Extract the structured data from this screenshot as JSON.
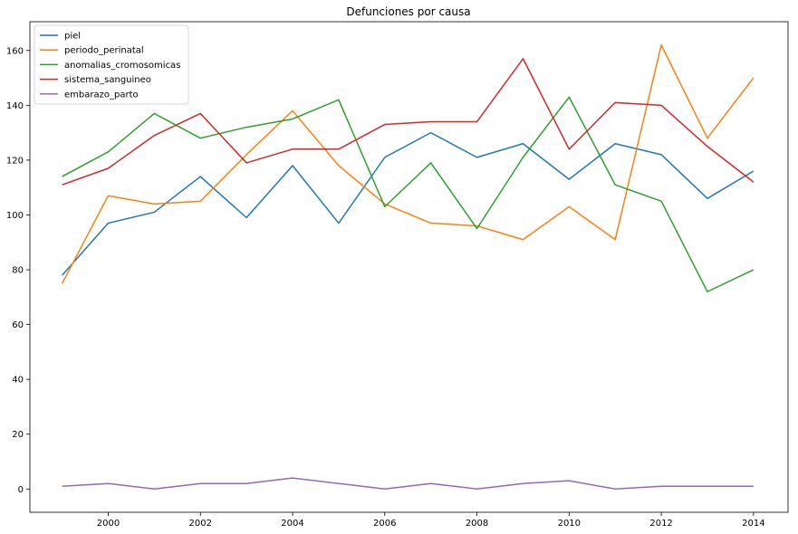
{
  "chart_data": {
    "type": "line",
    "title": "Defunciones por causa",
    "xlabel": "",
    "ylabel": "",
    "x": [
      1999,
      2000,
      2001,
      2002,
      2003,
      2004,
      2005,
      2006,
      2007,
      2008,
      2009,
      2010,
      2011,
      2012,
      2013,
      2014
    ],
    "xlim": [
      1998.3,
      2014.75
    ],
    "ylim": [
      -8.5,
      170.5
    ],
    "xticks": [
      2000,
      2002,
      2004,
      2006,
      2008,
      2010,
      2012,
      2014
    ],
    "yticks": [
      0,
      20,
      40,
      60,
      80,
      100,
      120,
      140,
      160
    ],
    "grid": false,
    "legend_position": "top-left",
    "series": [
      {
        "name": "piel",
        "color": "#1f77b4",
        "values": [
          78,
          97,
          101,
          114,
          99,
          118,
          97,
          121,
          130,
          121,
          126,
          113,
          126,
          122,
          106,
          116
        ]
      },
      {
        "name": "periodo_perinatal",
        "color": "#ff7f0e",
        "values": [
          75,
          107,
          104,
          105,
          122,
          138,
          118,
          104,
          97,
          96,
          91,
          103,
          91,
          162,
          128,
          150
        ]
      },
      {
        "name": "anomalias_cromosomicas",
        "color": "#2ca02c",
        "values": [
          114,
          123,
          137,
          128,
          132,
          135,
          142,
          103,
          119,
          95,
          121,
          143,
          111,
          105,
          72,
          80
        ]
      },
      {
        "name": "sistema_sanguineo",
        "color": "#d62728",
        "values": [
          111,
          117,
          129,
          137,
          119,
          124,
          124,
          133,
          134,
          134,
          157,
          124,
          141,
          140,
          125,
          112
        ]
      },
      {
        "name": "embarazo_parto",
        "color": "#9467bd",
        "values": [
          1,
          2,
          0,
          2,
          2,
          4,
          2,
          0,
          2,
          0,
          2,
          3,
          0,
          1,
          1,
          1
        ]
      }
    ]
  }
}
